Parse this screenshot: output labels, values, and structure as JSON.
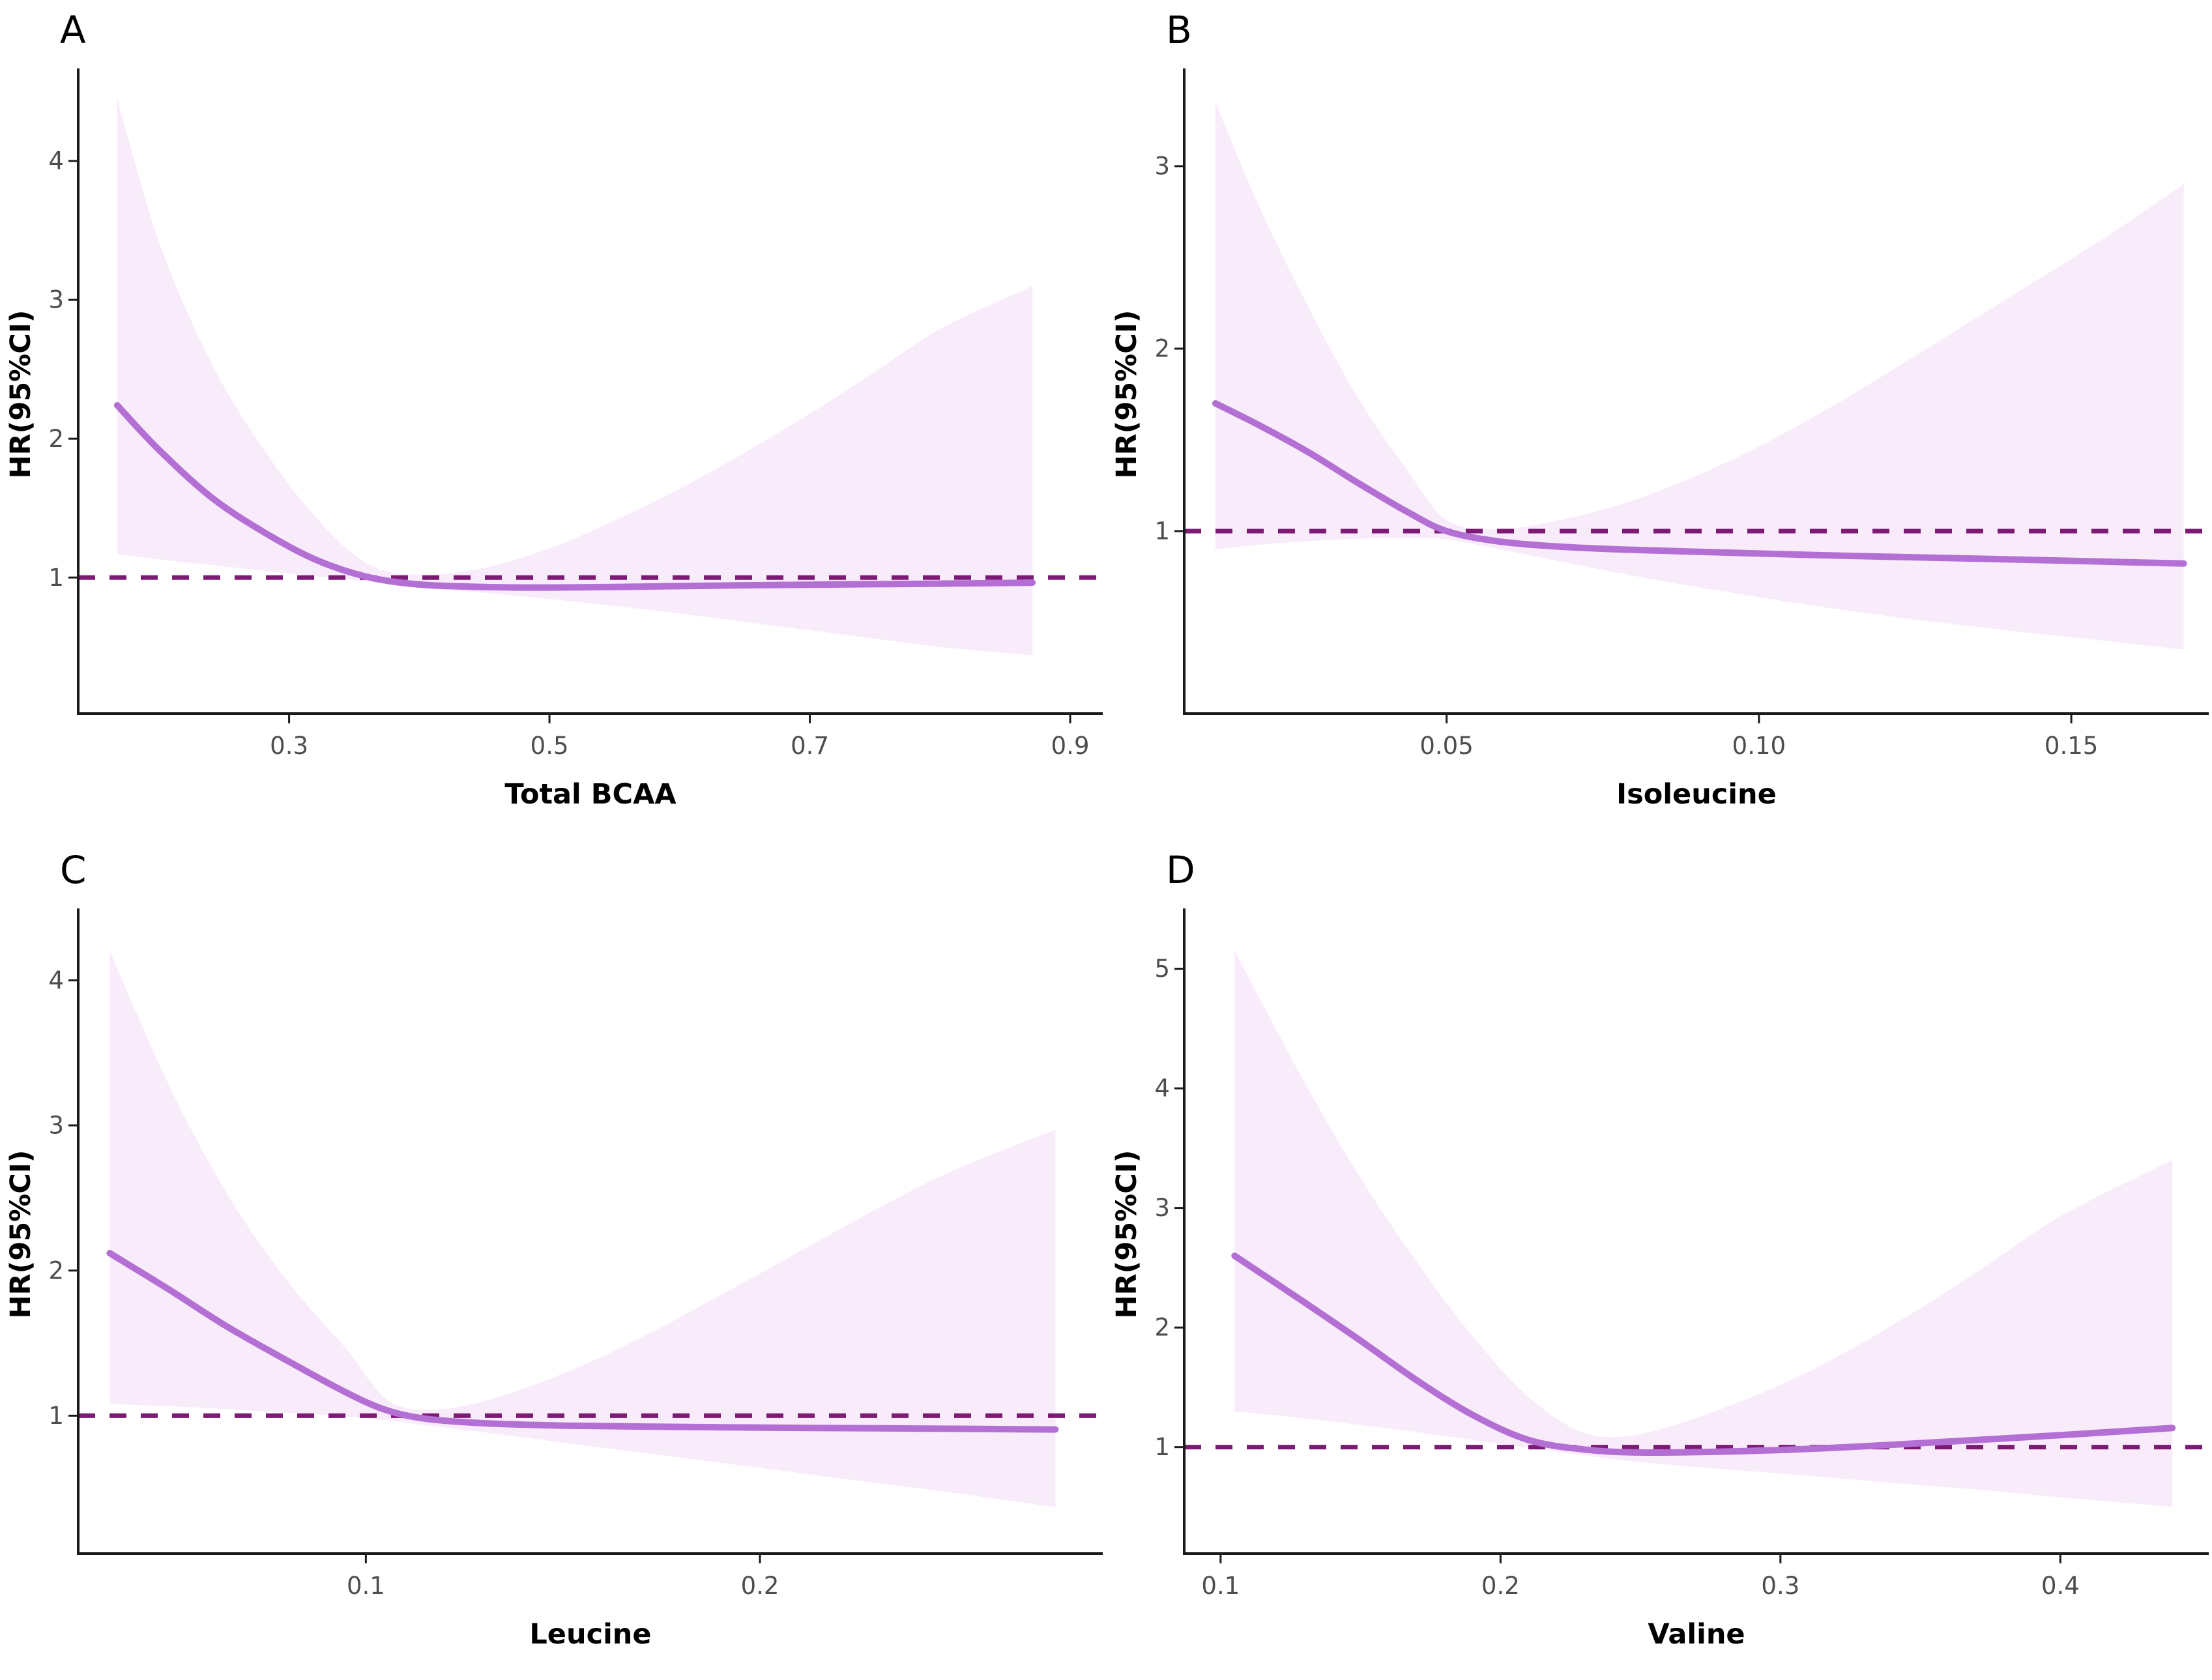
{
  "figure": {
    "background": "#ffffff",
    "ref_line_value": 1
  },
  "colors": {
    "curve": "#b46fd4",
    "ci_band": "#f8ecfb",
    "ref_line": "#7c1a74",
    "axis_line": "#1a1a1a",
    "tick_text": "#4d4d4d",
    "label_text": "#000000"
  },
  "chart_data": [
    {
      "type": "line",
      "letter": "A",
      "xlabel": "Total BCAA",
      "ylabel": "HR(95%CI)",
      "legend": "none",
      "grid": false,
      "xlim": [
        0.138,
        0.925
      ],
      "ylim": [
        0.02,
        4.62
      ],
      "x_ticks": [
        0.3,
        0.5,
        0.7,
        0.9
      ],
      "x_tick_labels": [
        "0.3",
        "0.5",
        "0.7",
        "0.9"
      ],
      "y_ticks": [
        1,
        2,
        3,
        4
      ],
      "y_tick_labels": [
        "1",
        "2",
        "3",
        "4"
      ],
      "ref_line": 1,
      "x": [
        0.168,
        0.2,
        0.24,
        0.28,
        0.32,
        0.36,
        0.4,
        0.45,
        0.5,
        0.55,
        0.6,
        0.65,
        0.7,
        0.75,
        0.8,
        0.871
      ],
      "hr": [
        2.24,
        1.92,
        1.58,
        1.33,
        1.13,
        1.005,
        0.95,
        0.932,
        0.928,
        0.932,
        0.938,
        0.944,
        0.948,
        0.952,
        0.956,
        0.963
      ],
      "ci_lower": [
        1.17,
        1.13,
        1.09,
        1.05,
        1.01,
        0.97,
        0.925,
        0.89,
        0.845,
        0.795,
        0.74,
        0.68,
        0.62,
        0.56,
        0.5,
        0.44
      ],
      "ci_upper": [
        4.45,
        3.42,
        2.55,
        1.93,
        1.44,
        1.1,
        1.02,
        1.07,
        1.21,
        1.41,
        1.64,
        1.9,
        2.18,
        2.48,
        2.79,
        3.1
      ]
    },
    {
      "type": "line",
      "letter": "B",
      "xlabel": "Isoleucine",
      "ylabel": "HR(95%CI)",
      "legend": "none",
      "grid": false,
      "xlim": [
        0.008,
        0.172
      ],
      "ylim": [
        0.0,
        3.5
      ],
      "x_ticks": [
        0.05,
        0.1,
        0.15
      ],
      "x_tick_labels": [
        "0.05",
        "0.10",
        "0.15"
      ],
      "y_ticks": [
        1,
        2,
        3
      ],
      "y_tick_labels": [
        "1",
        "2",
        "3"
      ],
      "ref_line": 1,
      "x": [
        0.013,
        0.02,
        0.028,
        0.036,
        0.044,
        0.05,
        0.058,
        0.068,
        0.08,
        0.095,
        0.11,
        0.125,
        0.14,
        0.155,
        0.168
      ],
      "hr": [
        1.7,
        1.58,
        1.43,
        1.26,
        1.1,
        1.0,
        0.945,
        0.915,
        0.897,
        0.882,
        0.868,
        0.856,
        0.845,
        0.833,
        0.822
      ],
      "ci_lower": [
        0.9,
        0.925,
        0.945,
        0.958,
        0.963,
        0.955,
        0.905,
        0.835,
        0.755,
        0.665,
        0.585,
        0.515,
        0.455,
        0.4,
        0.35
      ],
      "ci_upper": [
        3.35,
        2.78,
        2.22,
        1.72,
        1.32,
        1.06,
        1.01,
        1.06,
        1.17,
        1.38,
        1.65,
        1.96,
        2.28,
        2.6,
        2.9
      ]
    },
    {
      "type": "line",
      "letter": "C",
      "xlabel": "Leucine",
      "ylabel": "HR(95%CI)",
      "legend": "none",
      "grid": false,
      "xlim": [
        0.027,
        0.287
      ],
      "ylim": [
        0.05,
        4.45
      ],
      "x_ticks": [
        0.1,
        0.2
      ],
      "x_tick_labels": [
        "0.1",
        "0.2"
      ],
      "y_ticks": [
        1,
        2,
        3,
        4
      ],
      "y_tick_labels": [
        "1",
        "2",
        "3",
        "4"
      ],
      "ref_line": 1,
      "x": [
        0.035,
        0.05,
        0.065,
        0.08,
        0.095,
        0.105,
        0.115,
        0.13,
        0.15,
        0.17,
        0.19,
        0.21,
        0.23,
        0.25,
        0.275
      ],
      "hr": [
        2.12,
        1.87,
        1.61,
        1.38,
        1.16,
        1.04,
        0.98,
        0.948,
        0.932,
        0.925,
        0.92,
        0.916,
        0.913,
        0.91,
        0.905
      ],
      "ci_lower": [
        1.08,
        1.065,
        1.045,
        1.02,
        0.995,
        0.97,
        0.935,
        0.885,
        0.815,
        0.745,
        0.675,
        0.605,
        0.535,
        0.465,
        0.37
      ],
      "ci_upper": [
        4.2,
        3.28,
        2.52,
        1.93,
        1.46,
        1.12,
        1.04,
        1.1,
        1.29,
        1.54,
        1.83,
        2.13,
        2.43,
        2.7,
        2.97
      ]
    },
    {
      "type": "line",
      "letter": "D",
      "xlabel": "Valine",
      "ylabel": "HR(95%CI)",
      "legend": "none",
      "grid": false,
      "xlim": [
        0.087,
        0.453
      ],
      "ylim": [
        0.11,
        5.45
      ],
      "x_ticks": [
        0.1,
        0.2,
        0.3,
        0.4
      ],
      "x_tick_labels": [
        "0.1",
        "0.2",
        "0.3",
        "0.4"
      ],
      "y_ticks": [
        1,
        2,
        3,
        4,
        5
      ],
      "y_tick_labels": [
        "1",
        "2",
        "3",
        "4",
        "5"
      ],
      "ref_line": 1,
      "x": [
        0.105,
        0.13,
        0.15,
        0.17,
        0.19,
        0.21,
        0.23,
        0.25,
        0.28,
        0.31,
        0.34,
        0.37,
        0.4,
        0.44
      ],
      "hr": [
        2.6,
        2.21,
        1.89,
        1.56,
        1.27,
        1.06,
        0.98,
        0.955,
        0.963,
        0.985,
        1.02,
        1.06,
        1.1,
        1.16
      ],
      "ci_lower": [
        1.3,
        1.24,
        1.185,
        1.125,
        1.06,
        0.995,
        0.93,
        0.875,
        0.815,
        0.76,
        0.7,
        0.645,
        0.58,
        0.5
      ],
      "ci_upper": [
        5.15,
        4.05,
        3.25,
        2.55,
        1.93,
        1.42,
        1.12,
        1.11,
        1.33,
        1.63,
        2.02,
        2.46,
        2.93,
        3.4
      ]
    }
  ]
}
